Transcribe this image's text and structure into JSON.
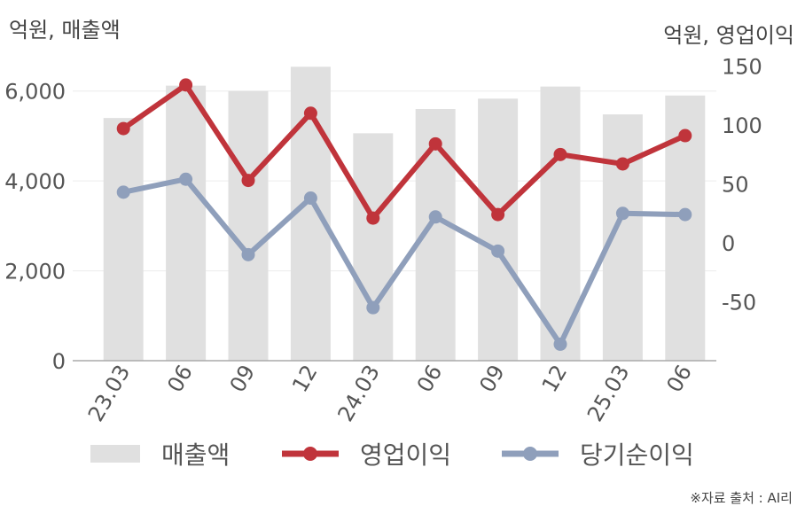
{
  "chart_data": {
    "type": "bar+line",
    "left_unit_label": "억원, 매출액",
    "right_unit_label": "억원, 영업이익",
    "categories": [
      "23.03",
      "06",
      "09",
      "12",
      "24.03",
      "06",
      "09",
      "12",
      "25.03",
      "06"
    ],
    "series": [
      {
        "name": "매출액",
        "type": "bar",
        "axis": "left",
        "color": "#e0e0e0",
        "values": [
          5400,
          6120,
          6000,
          6540,
          5060,
          5600,
          5830,
          6100,
          5480,
          5900
        ]
      },
      {
        "name": "영업이익",
        "type": "line",
        "axis": "right",
        "color": "#c0343b",
        "values": [
          97,
          134,
          53,
          110,
          21,
          84,
          24,
          75,
          67,
          91
        ]
      },
      {
        "name": "당기순이익",
        "type": "line",
        "axis": "right",
        "color": "#8f9fbb",
        "values": [
          43,
          54,
          -10,
          38,
          -55,
          22,
          -7,
          -86,
          25,
          24
        ]
      }
    ],
    "left_axis": {
      "ylim": [
        0,
        7000
      ],
      "ticks": [
        0,
        2000,
        4000,
        6000
      ],
      "tick_labels": [
        "0",
        "2,000",
        "4,000",
        "6,000"
      ]
    },
    "right_axis": {
      "ylim": [
        -100,
        167
      ],
      "ticks": [
        -50,
        0,
        50,
        100,
        150
      ],
      "tick_labels": [
        "-50",
        "0",
        "50",
        "100",
        "150"
      ]
    },
    "grid": true,
    "legend_position": "bottom"
  },
  "source": "※자료 출처 : AI리"
}
